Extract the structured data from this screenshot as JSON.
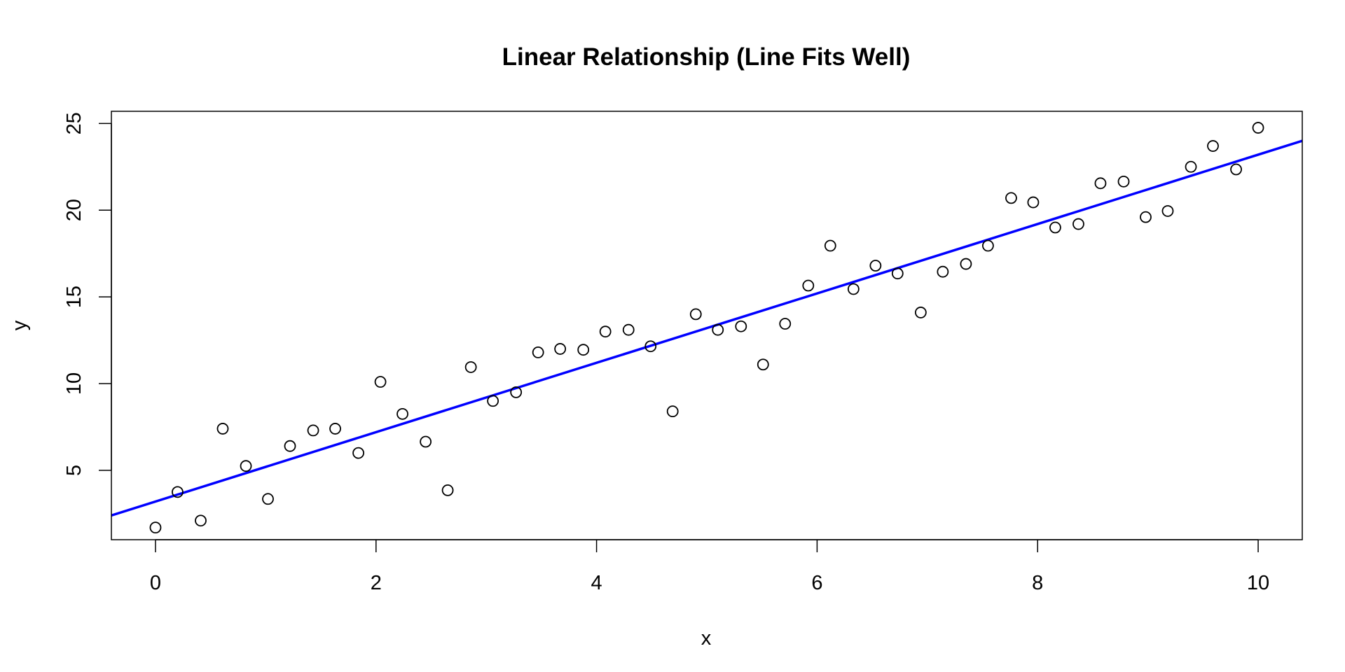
{
  "chart_data": {
    "type": "scatter",
    "title": "Linear Relationship (Line Fits Well)",
    "xlabel": "x",
    "ylabel": "y",
    "xlim": [
      -0.4,
      10.4
    ],
    "ylim": [
      1.0,
      25.7
    ],
    "x_ticks": [
      0,
      2,
      4,
      6,
      8,
      10
    ],
    "y_ticks": [
      5,
      10,
      15,
      20,
      25
    ],
    "grid": false,
    "legend": "none",
    "points": {
      "marker": "open-circle",
      "color": "#000000",
      "x": [
        0.0,
        0.2,
        0.41,
        0.61,
        0.82,
        1.02,
        1.22,
        1.43,
        1.63,
        1.84,
        2.04,
        2.24,
        2.45,
        2.65,
        2.86,
        3.06,
        3.27,
        3.47,
        3.67,
        3.88,
        4.08,
        4.29,
        4.49,
        4.69,
        4.9,
        5.1,
        5.31,
        5.51,
        5.71,
        5.92,
        6.12,
        6.33,
        6.53,
        6.73,
        6.94,
        7.14,
        7.35,
        7.55,
        7.76,
        7.96,
        8.16,
        8.37,
        8.57,
        8.78,
        8.98,
        9.18,
        9.39,
        9.59,
        9.8,
        10.0
      ],
      "y": [
        1.7,
        3.75,
        2.1,
        7.4,
        5.25,
        3.35,
        6.4,
        7.3,
        7.4,
        6.0,
        10.1,
        8.25,
        6.65,
        3.85,
        10.95,
        9.0,
        9.5,
        11.8,
        12.0,
        11.95,
        13.0,
        13.1,
        12.15,
        8.4,
        14.0,
        13.1,
        13.3,
        11.1,
        13.45,
        15.65,
        17.95,
        15.45,
        16.8,
        16.35,
        14.1,
        16.45,
        16.9,
        17.95,
        20.7,
        20.45,
        19.0,
        19.2,
        21.55,
        21.65,
        19.6,
        19.95,
        22.5,
        23.7,
        22.35,
        24.75
      ]
    },
    "fit_line": {
      "color": "#0000ff",
      "intercept": 3.2,
      "slope": 2.0
    }
  }
}
